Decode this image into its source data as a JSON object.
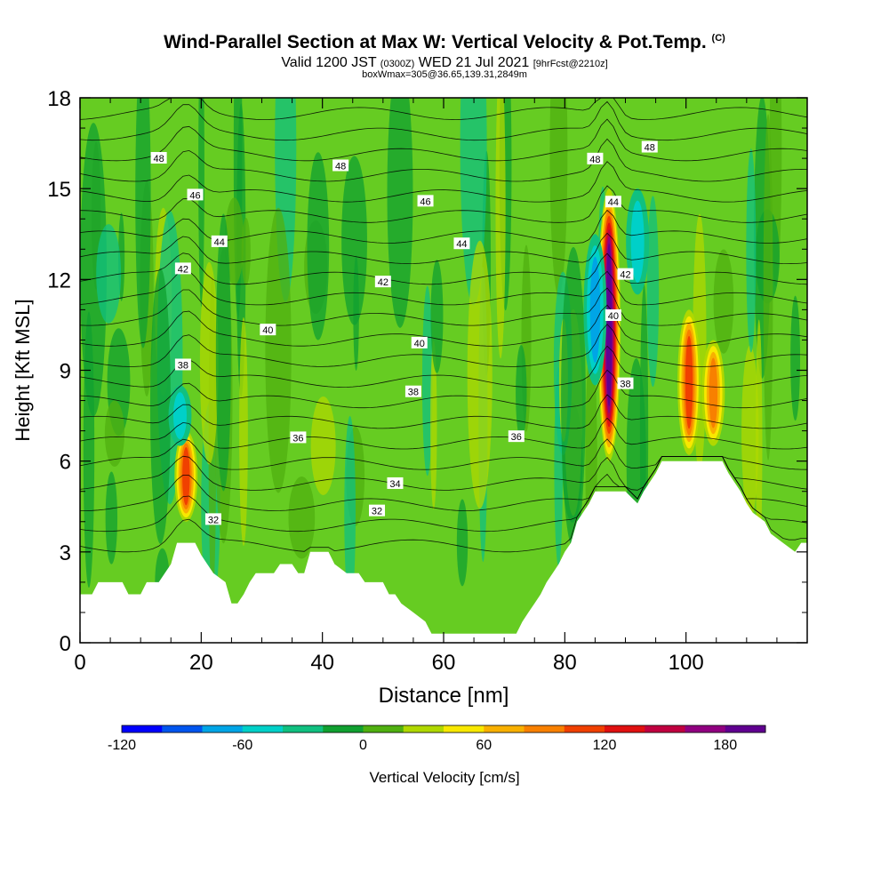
{
  "header": {
    "title": "Wind-Parallel Section at Max W: Vertical Velocity & Pot.Temp.",
    "title_mark": "(C)",
    "valid_prefix": "Valid 1200 JST",
    "valid_utc": "(0300Z)",
    "valid_date": "WED 21 Jul 2021",
    "forecast": "[9hrFcst@2210z]",
    "box_info": "boxWmax=305@36.65,139.31,2849m"
  },
  "chart_data": {
    "type": "heatmap",
    "xlabel": "Distance [nm]",
    "ylabel": "Height [Kft MSL]",
    "xlim": [
      0,
      120
    ],
    "ylim": [
      0,
      18
    ],
    "x_ticks": [
      "0",
      "20",
      "40",
      "60",
      "80",
      "100"
    ],
    "y_ticks": [
      "0",
      "3",
      "6",
      "9",
      "12",
      "15",
      "18"
    ],
    "colorbar": {
      "label": "Vertical Velocity [cm/s]",
      "min": -120,
      "max": 200,
      "step": 20,
      "tick_labels": [
        "-120",
        "-60",
        "0",
        "60",
        "120",
        "180"
      ],
      "colors": [
        "#0000ff",
        "#0055ee",
        "#00a5e6",
        "#00d0c8",
        "#10c080",
        "#10a030",
        "#50b010",
        "#b0d800",
        "#f8e800",
        "#f8b000",
        "#f88000",
        "#f04000",
        "#e01010",
        "#c00040",
        "#900080",
        "#600090"
      ]
    },
    "background_color": "#66cc22",
    "terrain_kft": [
      [
        0,
        1.6
      ],
      [
        2,
        1.6
      ],
      [
        3,
        2
      ],
      [
        7,
        2
      ],
      [
        8,
        1.6
      ],
      [
        10,
        1.6
      ],
      [
        11,
        2
      ],
      [
        13,
        2
      ],
      [
        14,
        2.3
      ],
      [
        15,
        2.6
      ],
      [
        16,
        3.3
      ],
      [
        19,
        3.3
      ],
      [
        20,
        2.9
      ],
      [
        21,
        2.6
      ],
      [
        22,
        2.3
      ],
      [
        24,
        2
      ],
      [
        25,
        1.3
      ],
      [
        26,
        1.3
      ],
      [
        27,
        1.6
      ],
      [
        28,
        2
      ],
      [
        29,
        2.3
      ],
      [
        32,
        2.3
      ],
      [
        33,
        2.6
      ],
      [
        35,
        2.6
      ],
      [
        36,
        2.3
      ],
      [
        37,
        2.3
      ],
      [
        38,
        3
      ],
      [
        41,
        3
      ],
      [
        42,
        2.6
      ],
      [
        44,
        2.3
      ],
      [
        46,
        2.3
      ],
      [
        47,
        2
      ],
      [
        50,
        2
      ],
      [
        51,
        1.6
      ],
      [
        52,
        1.6
      ],
      [
        53,
        1.3
      ],
      [
        55,
        1
      ],
      [
        57,
        0.7
      ],
      [
        58,
        0.3
      ],
      [
        72,
        0.3
      ],
      [
        73,
        0.7
      ],
      [
        74,
        1
      ],
      [
        75,
        1.3
      ],
      [
        76,
        1.6
      ],
      [
        77,
        2
      ],
      [
        78,
        2.3
      ],
      [
        79,
        2.6
      ],
      [
        80,
        3
      ],
      [
        81,
        3.3
      ],
      [
        82,
        4
      ],
      [
        83,
        4.3
      ],
      [
        84,
        4.6
      ],
      [
        85,
        5
      ],
      [
        90,
        5
      ],
      [
        92,
        4.6
      ],
      [
        93,
        5
      ],
      [
        94,
        5.3
      ],
      [
        95,
        5.6
      ],
      [
        96,
        6
      ],
      [
        106,
        6
      ],
      [
        107,
        5.6
      ],
      [
        108,
        5.3
      ],
      [
        109,
        5
      ],
      [
        110,
        4.6
      ],
      [
        111,
        4.3
      ],
      [
        113,
        4
      ],
      [
        114,
        3.6
      ],
      [
        116,
        3.3
      ],
      [
        118,
        3
      ],
      [
        119,
        3.3
      ],
      [
        120,
        3.3
      ]
    ],
    "updraft_cores": [
      {
        "x": 17.5,
        "y_bottom": 4.0,
        "y_top": 7.0,
        "w_max": 100
      },
      {
        "x": 87.3,
        "y_bottom": 6.0,
        "y_top": 15.0,
        "w_max": 180
      },
      {
        "x": 100.5,
        "y_bottom": 6.2,
        "y_top": 11.0,
        "w_max": 100
      },
      {
        "x": 104.5,
        "y_bottom": 6.5,
        "y_top": 10.0,
        "w_max": 80
      }
    ],
    "downdraft_cores": [
      {
        "x": 85.0,
        "y_bottom": 8.5,
        "y_top": 13.5,
        "w_min": -60
      },
      {
        "x": 16.5,
        "y_bottom": 6.5,
        "y_top": 8.5,
        "w_min": -40
      },
      {
        "x": 92.0,
        "y_bottom": 11.5,
        "y_top": 15.0,
        "w_min": -40
      }
    ],
    "theta_contours": [
      {
        "value": "32",
        "label_x": [
          49,
          22
        ]
      },
      {
        "value": "34",
        "label_x": [
          52
        ]
      },
      {
        "value": "36",
        "label_x": [
          36,
          72
        ]
      },
      {
        "value": "38",
        "label_x": [
          17,
          55,
          90
        ]
      },
      {
        "value": "40",
        "label_x": [
          31,
          56,
          88
        ]
      },
      {
        "value": "42",
        "label_x": [
          17,
          50,
          90
        ]
      },
      {
        "value": "44",
        "label_x": [
          23,
          63,
          88
        ]
      },
      {
        "value": "46",
        "label_x": [
          19,
          57
        ]
      },
      {
        "value": "48",
        "label_x": [
          13,
          43,
          85,
          94
        ]
      }
    ]
  }
}
